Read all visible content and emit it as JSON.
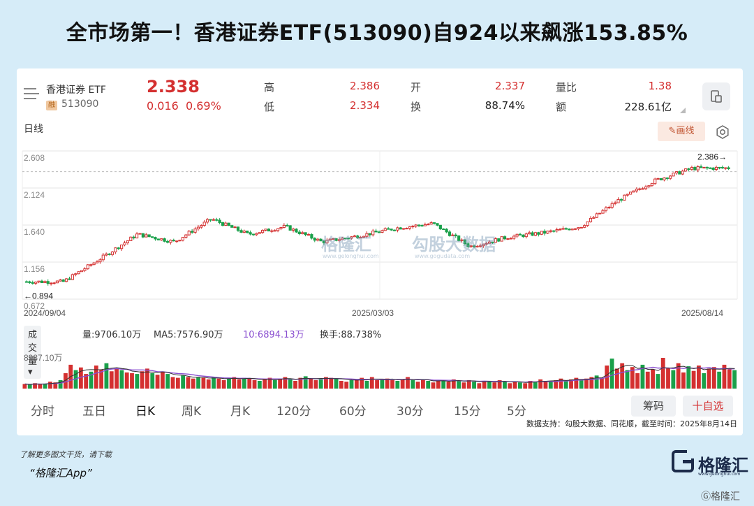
{
  "headline": "全市场第一！香港证券ETF(513090)自924以来飙涨153.85%",
  "quote": {
    "name": "香港证券 ETF",
    "rong_badge": "融",
    "code": "513090",
    "price": "2.338",
    "change": "0.016",
    "change_pct": "0.69%",
    "high_label": "高",
    "high": "2.386",
    "low_label": "低",
    "low": "2.334",
    "open_label": "开",
    "open": "2.337",
    "turnover_label": "换",
    "turnover": "88.74%",
    "vol_ratio_label": "量比",
    "vol_ratio": "1.38",
    "amount_label": "额",
    "amount": "228.61亿"
  },
  "chart_header": {
    "period_label": "日线",
    "draw_button": "画线"
  },
  "chart_data": {
    "type": "line",
    "title": "",
    "y_ticks": [
      "2.608",
      "2.124",
      "1.640",
      "1.156",
      "0.672"
    ],
    "ylim": [
      0.672,
      2.608
    ],
    "x_labels": [
      "2024/09/04",
      "2025/03/03",
      "2025/08/14"
    ],
    "annotations": {
      "high_marker": "2.386→",
      "low_marker": "←0.894"
    },
    "x": [
      "2024/09/04",
      "2024/09/20",
      "2024/09/30",
      "2024/10/08",
      "2024/10/20",
      "2024/11/07",
      "2024/11/25",
      "2024/12/10",
      "2025/01/13",
      "2025/02/10",
      "2025/03/03",
      "2025/03/20",
      "2025/04/07",
      "2025/05/05",
      "2025/06/05",
      "2025/06/20",
      "2025/07/01",
      "2025/07/18",
      "2025/08/01",
      "2025/08/14"
    ],
    "values": [
      0.9,
      0.9,
      1.2,
      1.52,
      1.42,
      1.72,
      1.52,
      1.62,
      1.42,
      1.5,
      1.6,
      1.66,
      1.36,
      1.48,
      1.54,
      1.62,
      1.96,
      2.22,
      2.38,
      2.386
    ],
    "grid": true
  },
  "volume": {
    "selector": "成交量",
    "vol_text": "量:9706.10万",
    "ma5_text": "MA5:7576.90万",
    "ma10_text": "10:6894.13万",
    "turnover_text": "换手:88.738%",
    "y_tick": "8987.10万",
    "bars": [
      12,
      10,
      14,
      11,
      13,
      18,
      16,
      22,
      40,
      62,
      48,
      55,
      38,
      44,
      60,
      50,
      66,
      45,
      52,
      48,
      42,
      40,
      38,
      45,
      52,
      40,
      36,
      44,
      38,
      30,
      28,
      34,
      30,
      26,
      30,
      28,
      24,
      30,
      26,
      22,
      26,
      30,
      24,
      28,
      26,
      22,
      20,
      24,
      28,
      22,
      26,
      30,
      24,
      20,
      28,
      32,
      26,
      22,
      24,
      30,
      28,
      26,
      20,
      18,
      22,
      24,
      28,
      20,
      30,
      22,
      24,
      26,
      22,
      20,
      24,
      30,
      22,
      18,
      24,
      20,
      16,
      22,
      20,
      18,
      24,
      20,
      16,
      22,
      18,
      14,
      20,
      18,
      16,
      22,
      18,
      14,
      18,
      16,
      14,
      20,
      18,
      24,
      20,
      18,
      22,
      26,
      20,
      24,
      28,
      22,
      26,
      30,
      34,
      28,
      60,
      78,
      52,
      66,
      48,
      56,
      40,
      62,
      44,
      50,
      38,
      80,
      54,
      48,
      66,
      42,
      58,
      46,
      60,
      40,
      52,
      56,
      44,
      62,
      50,
      48
    ]
  },
  "periods": [
    "分时",
    "五日",
    "日K",
    "周K",
    "月K",
    "120分",
    "60分",
    "30分",
    "15分",
    "5分"
  ],
  "chip_button": "筹码",
  "watch_button": "十自选",
  "data_source": "数据支持：勾股大数据、同花顺，截至时间：2025年8月14日",
  "footer_line1": "了解更多图文干货，请下载",
  "footer_line2": "“格隆汇App”",
  "brand": "格隆汇",
  "brand_sub": "www.gelonghui.com",
  "watermark_left": "格隆汇",
  "watermark_left_sub": "www.gelonghui.com",
  "watermark_right": "勾股大数据",
  "watermark_right_sub": "www.gogudata.com",
  "corner_watermark": "格隆汇",
  "colors": {
    "up": "#d43030",
    "down": "#1aa04a",
    "ma_purple": "#8a4fd0",
    "background": "#d6ecf8"
  }
}
